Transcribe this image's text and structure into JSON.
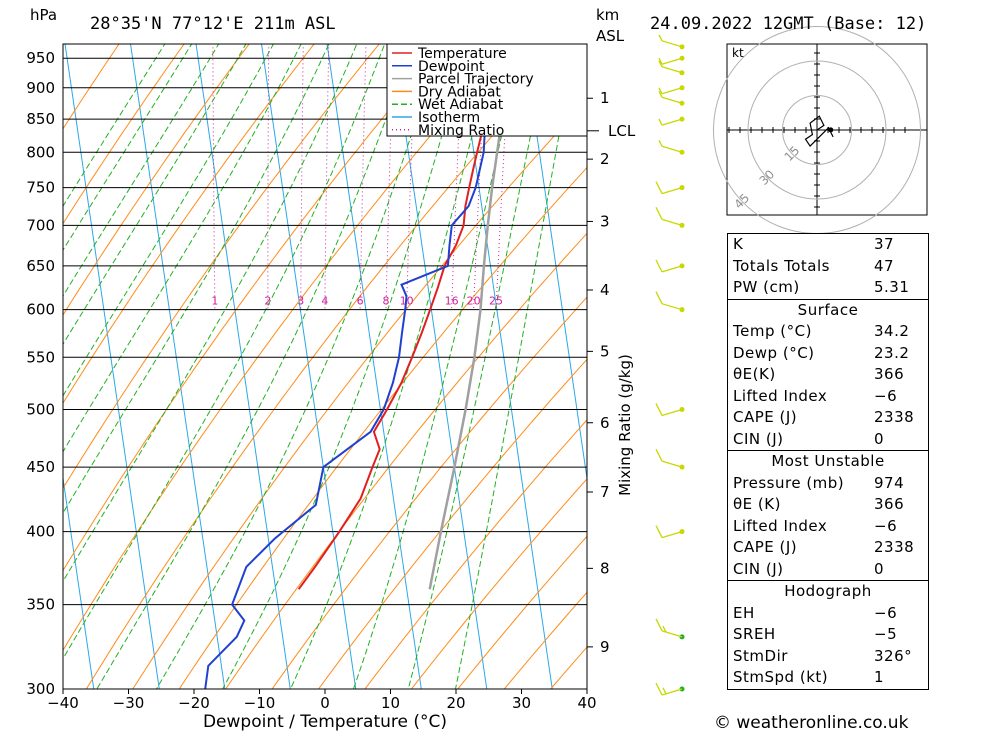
{
  "header": {
    "pressure_unit": "hPa",
    "location": "28°35'N  77°12'E  211m  ASL",
    "height_unit_line1": "km",
    "height_unit_line2": "ASL",
    "datetime": "24.09.2022  12GMT  (Base: 12)"
  },
  "footer": {
    "copyright": "© weatheronline.co.uk"
  },
  "hodograph": {
    "unit": "kt",
    "ring_labels": [
      "15",
      "30",
      "45"
    ]
  },
  "colors": {
    "temperature": "#e02020",
    "dewpoint": "#2040d0",
    "parcel": "#a0a0a0",
    "dry_adiabat": "#ff8c1a",
    "wet_adiabat": "#22b022",
    "isotherm": "#2ca8e8",
    "mixing_ratio": "#d020a0",
    "wind": "#c8d800"
  },
  "chart_data": {
    "type": "line",
    "title": "",
    "xlabel": "Dewpoint / Temperature (°C)",
    "ylabel": "hPa",
    "y2label": "Mixing Ratio (g/kg)",
    "xlim": [
      -40,
      40
    ],
    "ylim": [
      975,
      300
    ],
    "y_scale": "log",
    "x_ticks": [
      "−40",
      "−30",
      "−20",
      "−10",
      "0",
      "10",
      "20",
      "30",
      "40"
    ],
    "pressure_levels": [
      300,
      350,
      400,
      450,
      500,
      550,
      600,
      650,
      700,
      750,
      800,
      850,
      900,
      950
    ],
    "height_ticks": [
      {
        "km": "1",
        "p": 883
      },
      {
        "km": "2",
        "p": 790
      },
      {
        "km": "3",
        "p": 705
      },
      {
        "km": "4",
        "p": 622
      },
      {
        "km": "5",
        "p": 556
      },
      {
        "km": "6",
        "p": 488
      },
      {
        "km": "7",
        "p": 430
      },
      {
        "km": "8",
        "p": 374
      },
      {
        "km": "9",
        "p": 324
      }
    ],
    "lcl": {
      "label": "LCL",
      "p": 832
    },
    "mixing_ratio_labels": [
      "1",
      "2",
      "3",
      "4",
      "6",
      "8",
      "10",
      "16",
      "20",
      "25"
    ],
    "legend": [
      "Temperature",
      "Dewpoint",
      "Parcel Trajectory",
      "Dry Adiabat",
      "Wet Adiabat",
      "Isotherm",
      "Mixing Ratio"
    ],
    "series": [
      {
        "name": "Temperature",
        "points": [
          [
            970,
            35.5
          ],
          [
            950,
            33
          ],
          [
            925,
            30
          ],
          [
            900,
            27.5
          ],
          [
            875,
            25
          ],
          [
            850,
            23
          ],
          [
            825,
            21.5
          ],
          [
            800,
            20.5
          ],
          [
            775,
            19.5
          ],
          [
            750,
            18.5
          ],
          [
            725,
            17.5
          ],
          [
            700,
            16.8
          ],
          [
            675,
            15.2
          ],
          [
            650,
            13
          ],
          [
            625,
            11.5
          ],
          [
            600,
            9.8
          ],
          [
            575,
            8
          ],
          [
            550,
            6
          ],
          [
            525,
            3.8
          ],
          [
            500,
            1
          ],
          [
            480,
            -1.5
          ],
          [
            465,
            -1
          ],
          [
            450,
            -2.5
          ],
          [
            425,
            -5
          ],
          [
            400,
            -9
          ],
          [
            375,
            -13.5
          ],
          [
            360,
            -16.5
          ]
        ]
      },
      {
        "name": "Dewpoint",
        "points": [
          [
            970,
            23.5
          ],
          [
            950,
            23
          ],
          [
            925,
            22.5
          ],
          [
            900,
            22.5
          ],
          [
            850,
            22.5
          ],
          [
            800,
            21.5
          ],
          [
            750,
            19.5
          ],
          [
            725,
            18
          ],
          [
            700,
            15
          ],
          [
            675,
            14.2
          ],
          [
            650,
            13.5
          ],
          [
            628,
            6
          ],
          [
            615,
            6.5
          ],
          [
            600,
            6
          ],
          [
            575,
            5
          ],
          [
            550,
            4
          ],
          [
            525,
            2.5
          ],
          [
            500,
            0.5
          ],
          [
            480,
            -2
          ],
          [
            450,
            -10
          ],
          [
            420,
            -12
          ],
          [
            395,
            -19
          ],
          [
            375,
            -24
          ],
          [
            350,
            -27
          ],
          [
            340,
            -25.5
          ],
          [
            330,
            -27
          ],
          [
            313,
            -32
          ],
          [
            300,
            -33
          ]
        ]
      },
      {
        "name": "Parcel Trajectory",
        "points": [
          [
            970,
            35.5
          ],
          [
            900,
            28.5
          ],
          [
            832,
            24.5
          ],
          [
            750,
            22
          ],
          [
            700,
            20.5
          ],
          [
            650,
            19
          ],
          [
            600,
            17.5
          ],
          [
            550,
            15.5
          ],
          [
            500,
            13
          ],
          [
            450,
            10
          ],
          [
            400,
            6.5
          ],
          [
            360,
            3.5
          ]
        ]
      }
    ],
    "wind_barbs": [
      {
        "p": 970,
        "speed_kt": 5
      },
      {
        "p": 950,
        "speed_kt": 5
      },
      {
        "p": 925,
        "speed_kt": 5
      },
      {
        "p": 900,
        "speed_kt": 5
      },
      {
        "p": 875,
        "speed_kt": 5
      },
      {
        "p": 850,
        "speed_kt": 5
      },
      {
        "p": 800,
        "speed_kt": 5
      },
      {
        "p": 750,
        "speed_kt": 10
      },
      {
        "p": 700,
        "speed_kt": 10
      },
      {
        "p": 650,
        "speed_kt": 10
      },
      {
        "p": 600,
        "speed_kt": 10
      },
      {
        "p": 500,
        "speed_kt": 10
      },
      {
        "p": 450,
        "speed_kt": 10
      },
      {
        "p": 400,
        "speed_kt": 10
      },
      {
        "p": 330,
        "speed_kt": 15
      },
      {
        "p": 300,
        "speed_kt": 15
      }
    ]
  },
  "indices": [
    {
      "label": "K",
      "value": "37"
    },
    {
      "label": "Totals Totals",
      "value": "47"
    },
    {
      "label": "PW (cm)",
      "value": "5.31"
    }
  ],
  "surface": {
    "title": "Surface",
    "rows": [
      {
        "label": "Temp (°C)",
        "value": "34.2"
      },
      {
        "label": "Dewp (°C)",
        "value": "23.2"
      },
      {
        "label": "θE(K)",
        "value": "366"
      },
      {
        "label": "Lifted Index",
        "value": "−6"
      },
      {
        "label": "CAPE (J)",
        "value": "2338"
      },
      {
        "label": "CIN (J)",
        "value": "0"
      }
    ]
  },
  "most_unstable": {
    "title": "Most Unstable",
    "rows": [
      {
        "label": "Pressure (mb)",
        "value": "974"
      },
      {
        "label": "θE (K)",
        "value": "366"
      },
      {
        "label": "Lifted Index",
        "value": "−6"
      },
      {
        "label": "CAPE (J)",
        "value": "2338"
      },
      {
        "label": "CIN (J)",
        "value": "0"
      }
    ]
  },
  "hodograph_params": {
    "title": "Hodograph",
    "rows": [
      {
        "label": "EH",
        "value": "−6"
      },
      {
        "label": "SREH",
        "value": "−5"
      },
      {
        "label": "StmDir",
        "value": "326°"
      },
      {
        "label": "StmSpd (kt)",
        "value": "1"
      }
    ]
  }
}
